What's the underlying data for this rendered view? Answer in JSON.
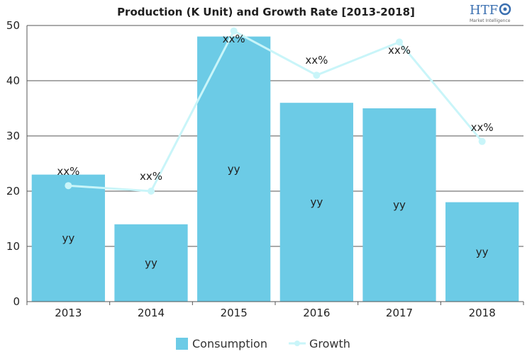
{
  "chart_data": {
    "type": "bar",
    "title": "Production (K Unit) and Growth Rate [2013-2018]",
    "categories": [
      "2013",
      "2014",
      "2015",
      "2016",
      "2017",
      "2018"
    ],
    "series": [
      {
        "name": "Consumption",
        "type": "bar",
        "values": [
          23,
          14,
          48,
          36,
          35,
          18
        ],
        "labels": [
          "yy",
          "yy",
          "yy",
          "yy",
          "yy",
          "yy"
        ],
        "color": "#6ccbe6"
      },
      {
        "name": "Growth",
        "type": "line",
        "values": [
          21,
          20,
          49,
          41,
          47,
          29
        ],
        "labels": [
          "xx%",
          "xx%",
          "xx%",
          "xx%",
          "xx%",
          "xx%"
        ],
        "color": "#c9f5f9"
      }
    ],
    "y_ticks": [
      "0",
      "10",
      "20",
      "30",
      "40",
      "50"
    ],
    "ylim": [
      0,
      50
    ],
    "grid": true,
    "legend_position": "bottom-center"
  },
  "logo": {
    "text": "HTF",
    "subtext": "Market Intelligence",
    "color": "#3a6fb0"
  }
}
